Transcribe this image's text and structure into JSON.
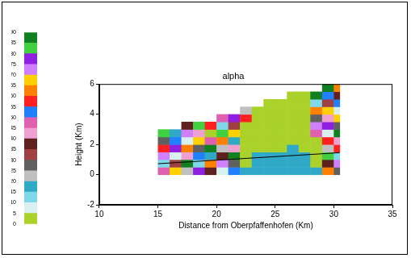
{
  "chart_data": {
    "type": "heatmap",
    "title": "alpha",
    "x_label": "Distance from Oberpfaffenhofen (Km)",
    "y_label": "Height (Km)",
    "xlim": [
      10,
      35
    ],
    "xticks": [
      10,
      15,
      20,
      25,
      30,
      35
    ],
    "ylim": [
      -2,
      6
    ],
    "yticks": [
      -2,
      0,
      2,
      4,
      6
    ],
    "grid": false,
    "cells": {
      "x_edges": [
        15,
        16,
        17,
        18,
        19,
        20,
        21,
        22,
        23,
        24,
        25,
        26,
        27,
        28,
        29,
        30,
        30.5
      ],
      "y_edges": [
        0,
        0.5,
        1,
        1.5,
        2,
        2.5,
        3,
        3.5,
        4,
        4.5,
        5,
        5.5,
        6
      ],
      "values": [
        [
          47,
          12,
          73,
          58,
          28,
          84,
          null,
          null,
          null,
          null,
          null,
          null
        ],
        [
          66,
          31,
          5,
          77,
          52,
          19,
          null,
          null,
          null,
          null,
          null,
          null
        ],
        [
          23,
          88,
          44,
          61,
          9,
          72,
          36,
          null,
          null,
          null,
          null,
          null
        ],
        [
          79,
          14,
          53,
          26,
          67,
          41,
          83,
          null,
          null,
          null,
          null,
          null
        ],
        [
          35,
          62,
          18,
          87,
          48,
          3,
          57,
          null,
          null,
          null,
          null,
          null
        ],
        [
          8,
          71,
          39,
          24,
          64,
          81,
          13,
          46,
          null,
          null,
          null,
          null
        ],
        [
          54,
          27,
          86,
          43,
          16,
          68,
          32,
          76,
          null,
          null,
          null,
          null
        ],
        [
          16,
          3,
          2,
          4,
          3,
          3,
          2,
          58,
          21,
          null,
          null,
          null
        ],
        [
          16,
          17,
          16,
          3,
          2,
          3,
          4,
          3,
          2,
          null,
          null,
          null
        ],
        [
          17,
          16,
          16,
          2,
          3,
          3,
          2,
          4,
          3,
          3,
          null,
          null
        ],
        [
          16,
          17,
          16,
          3,
          3,
          2,
          3,
          3,
          4,
          2,
          null,
          null
        ],
        [
          17,
          16,
          17,
          16,
          3,
          2,
          3,
          3,
          2,
          3,
          4,
          null
        ],
        [
          16,
          17,
          16,
          3,
          2,
          3,
          4,
          3,
          3,
          2,
          3,
          null
        ],
        [
          16,
          3,
          2,
          3,
          2,
          48,
          73,
          29,
          62,
          11,
          86,
          null
        ],
        [
          61,
          37,
          84,
          22,
          55,
          9,
          78,
          44,
          67,
          31,
          53,
          88
        ],
        [
          29,
          74,
          13,
          57,
          42,
          85,
          26,
          69,
          7,
          51,
          38,
          63
        ]
      ]
    },
    "colorbar": {
      "range": [
        0,
        90
      ],
      "ticks": [
        0,
        5,
        10,
        15,
        20,
        25,
        30,
        35,
        40,
        45,
        50,
        55,
        60,
        65,
        70,
        75,
        80,
        85,
        90
      ],
      "colors": [
        "#aad22a",
        "#d8f0f0",
        "#7fd8e8",
        "#30a8c8",
        "#c0c0c0",
        "#606060",
        "#a04040",
        "#602020",
        "#f0a0d0",
        "#e060b0",
        "#2080ff",
        "#ff2020",
        "#ff8000",
        "#ffd000",
        "#d080ff",
        "#9020e0",
        "#40d040",
        "#108020"
      ]
    },
    "line": {
      "x": [
        15,
        30.5
      ],
      "y": [
        0.72,
        1.45
      ],
      "color": "#000000"
    }
  }
}
